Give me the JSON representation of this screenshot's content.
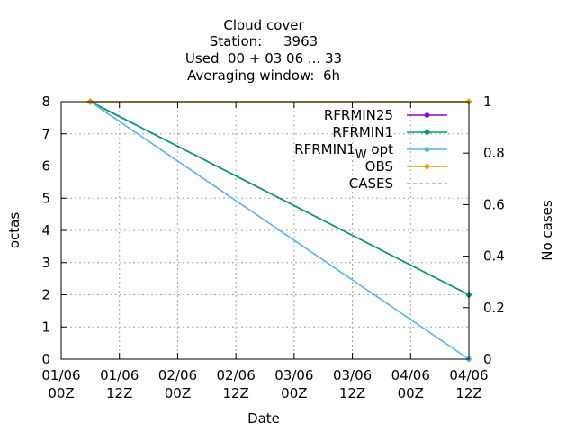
{
  "chart_data": {
    "type": "line",
    "title_lines": [
      "Cloud cover",
      "Station:     3963",
      "Used  00 + 03 06 ... 33",
      "Averaging window:  6h"
    ],
    "xlabel": "Date",
    "ylabel": "octas",
    "y2label": "No cases",
    "xlim": [
      0,
      84
    ],
    "ylim": [
      0,
      8
    ],
    "y2lim": [
      0,
      1
    ],
    "x_ticks": [
      {
        "x": 0,
        "line1": "01/06",
        "line2": "00Z"
      },
      {
        "x": 12,
        "line1": "01/06",
        "line2": "12Z"
      },
      {
        "x": 24,
        "line1": "02/06",
        "line2": "00Z"
      },
      {
        "x": 36,
        "line1": "02/06",
        "line2": "12Z"
      },
      {
        "x": 48,
        "line1": "03/06",
        "line2": "00Z"
      },
      {
        "x": 60,
        "line1": "03/06",
        "line2": "12Z"
      },
      {
        "x": 72,
        "line1": "04/06",
        "line2": "00Z"
      },
      {
        "x": 84,
        "line1": "04/06",
        "line2": "12Z"
      }
    ],
    "y_ticks": [
      "0",
      "1",
      "2",
      "3",
      "4",
      "5",
      "6",
      "7",
      "8"
    ],
    "y2_ticks": [
      "0",
      "0.2",
      "0.4",
      "0.6",
      "0.8",
      "1"
    ],
    "y2_tick_values": [
      0,
      0.2,
      0.4,
      0.6,
      0.8,
      1
    ],
    "grid": true,
    "legend_position": "top-right",
    "series": [
      {
        "name": "RFRMIN25",
        "color": "#9400d3",
        "axis": "y",
        "points": [
          {
            "x": 6,
            "y": 8
          },
          {
            "x": 84,
            "y": 2
          }
        ]
      },
      {
        "name": "RFRMIN1",
        "color": "#009e73",
        "axis": "y",
        "points": [
          {
            "x": 6,
            "y": 8
          },
          {
            "x": 84,
            "y": 2
          }
        ]
      },
      {
        "name": "RFRMIN1",
        "name_sub": "W",
        "name_suffix": " opt",
        "color": "#56b4e9",
        "axis": "y",
        "points": [
          {
            "x": 6,
            "y": 8
          },
          {
            "x": 84,
            "y": 0
          }
        ]
      },
      {
        "name": "OBS",
        "color": "#e69f00",
        "axis": "y",
        "points": [
          {
            "x": 6,
            "y": 8
          },
          {
            "x": 84,
            "y": 8
          }
        ]
      },
      {
        "name": "CASES",
        "color": "#808080",
        "dashed": true,
        "axis": "y2",
        "points": [
          {
            "x": 6,
            "y": 1
          },
          {
            "x": 84,
            "y": 1
          }
        ]
      }
    ]
  }
}
